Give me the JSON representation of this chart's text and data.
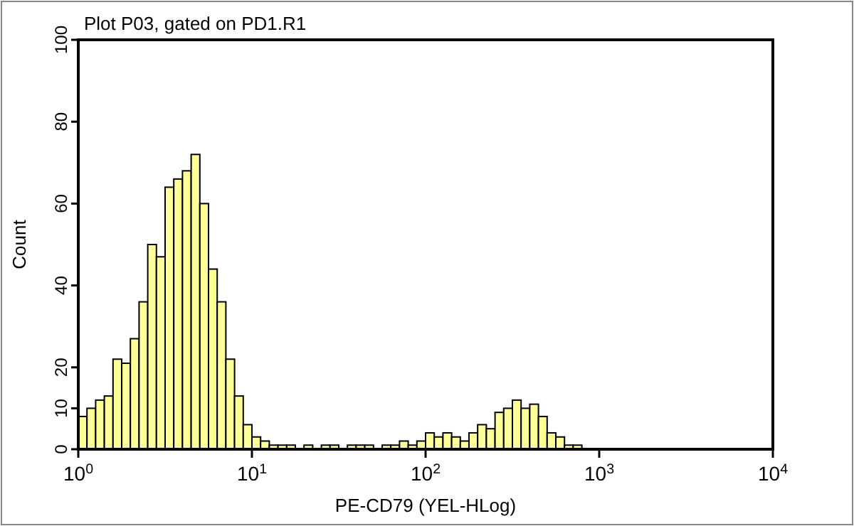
{
  "chart_data": {
    "type": "histogram",
    "title": "Plot P03, gated on PD1.R1",
    "xlabel": "PE-CD79 (YEL-HLog)",
    "ylabel": "Count",
    "color": "#ffff99",
    "log": "x",
    "grid": false,
    "bins": [
      1,
      1.122,
      1.259,
      1.413,
      1.585,
      1.778,
      1.995,
      2.239,
      2.512,
      2.818,
      3.162,
      3.548,
      3.981,
      4.467,
      5.012,
      5.623,
      6.31,
      7.079,
      7.943,
      8.913,
      10,
      11.22,
      12.59,
      14.13,
      15.85,
      17.78,
      19.95,
      22.39,
      25.12,
      28.18,
      31.62,
      35.48,
      39.81,
      44.67,
      50.12,
      56.23,
      63.1,
      70.79,
      79.43,
      89.13,
      100,
      112.2,
      125.9,
      141.3,
      158.5,
      177.8,
      199.5,
      223.9,
      251.2,
      281.8,
      316.2,
      354.8,
      398.1,
      446.7,
      501.2,
      562.3,
      631,
      707.9,
      794.3,
      891.3,
      1000
    ],
    "values": [
      8,
      10,
      12,
      13,
      22,
      21,
      27,
      36,
      50,
      47,
      64,
      66,
      68,
      72,
      60,
      44,
      36,
      22,
      13,
      6,
      3,
      2,
      1,
      1,
      1,
      0,
      1,
      0,
      1,
      1,
      0,
      1,
      1,
      1,
      0,
      1,
      1,
      2,
      1,
      2,
      4,
      3,
      4,
      3,
      2,
      4,
      6,
      5,
      9,
      10,
      12,
      10,
      11,
      8,
      4,
      3,
      1,
      1,
      0,
      0
    ],
    "xlim": [
      1,
      10000
    ],
    "xticks": [
      {
        "value": 1,
        "label": "10$^{0}$"
      },
      {
        "value": 10,
        "label": "10$^{1}$"
      },
      {
        "value": 100,
        "label": "10$^{2}$"
      },
      {
        "value": 1000,
        "label": "10$^{3}$"
      },
      {
        "value": 10000,
        "label": "10$^{4}$"
      }
    ],
    "ylim": [
      0,
      100
    ],
    "yticks": [
      0,
      10,
      20,
      40,
      60,
      80,
      100
    ]
  }
}
